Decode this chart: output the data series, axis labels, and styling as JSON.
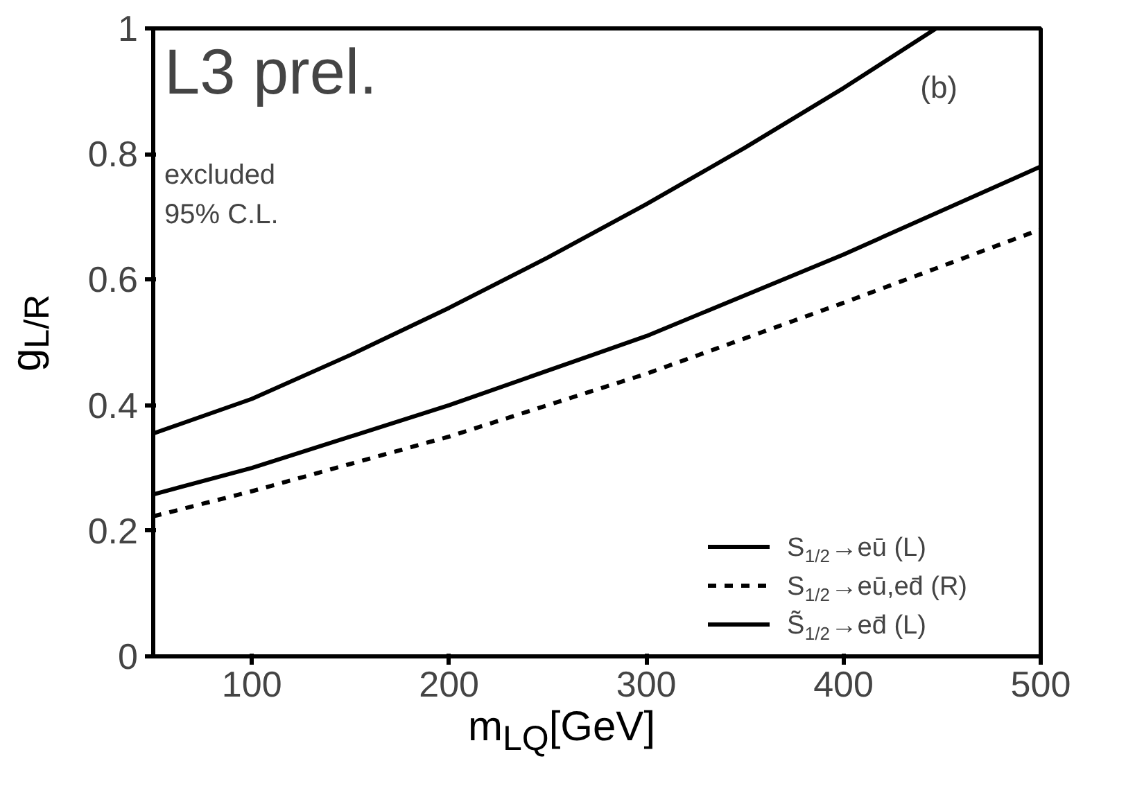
{
  "chart_data": {
    "type": "line",
    "xlabel": "m$_{LQ}$[GeV]",
    "ylabel": "g$_{L/R}$",
    "annotations": [
      "L3 prel.",
      "(b)",
      "excluded\n95% C.L."
    ],
    "xlim": [
      50,
      500
    ],
    "xticks": [
      100,
      200,
      300,
      400,
      500
    ],
    "ylim": [
      0,
      1
    ],
    "yticks": [
      0,
      0.2,
      0.4,
      0.6,
      0.8,
      1
    ],
    "grid": false,
    "legend": "bottom right",
    "series": [
      {
        "name": "S$_{1/2}$→eū (L)",
        "color": "#000000",
        "line_style": "solid",
        "x": [
          50,
          100,
          150,
          200,
          250,
          300,
          350,
          400,
          447
        ],
        "values": [
          0.355,
          0.41,
          0.48,
          0.555,
          0.635,
          0.72,
          0.81,
          0.905,
          1.0
        ]
      },
      {
        "name": "S$_{1/2}$→eū,ed̄ (R)",
        "color": "#000000",
        "line_style": "dashed",
        "x": [
          50,
          100,
          200,
          300,
          400,
          500
        ],
        "values": [
          0.223,
          0.263,
          0.35,
          0.45,
          0.563,
          0.68
        ]
      },
      {
        "name": "S̃$_{1/2}$→ed̄ (L)",
        "color": "#000000",
        "line_style": "solid",
        "x": [
          50,
          100,
          200,
          300,
          400,
          500
        ],
        "values": [
          0.258,
          0.3,
          0.4,
          0.51,
          0.64,
          0.78
        ]
      }
    ]
  }
}
